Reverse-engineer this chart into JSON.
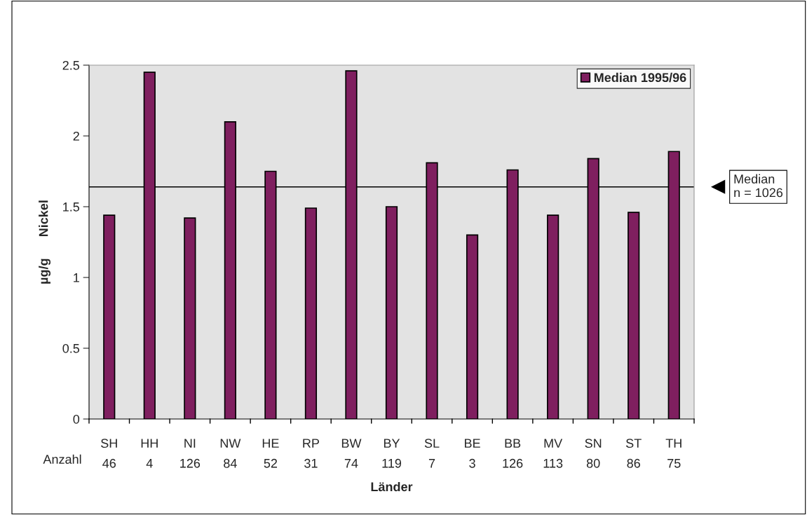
{
  "chart_data": {
    "type": "bar",
    "xlabel": "Länder",
    "ylabel": "µg/g      Nickel",
    "categories": [
      "SH\n46",
      "HH\n4",
      "NI\n126",
      "NW\n84",
      "HE\n52",
      "RP\n31",
      "BW\n74",
      "BY\n119",
      "SL\n7",
      "BE\n3",
      "BB\n126",
      "MV\n113",
      "SN\n80",
      "ST\n86",
      "TH\n75"
    ],
    "series": [
      {
        "name": "Median 1995/96",
        "color": "#7f1f5f",
        "values": [
          1.44,
          2.45,
          1.42,
          2.1,
          1.75,
          1.49,
          2.46,
          1.5,
          1.81,
          1.3,
          1.76,
          1.44,
          1.84,
          1.46,
          1.89
        ]
      }
    ],
    "ylim": [
      0,
      2.5
    ],
    "yticks": [
      0,
      0.5,
      1,
      1.5,
      2,
      2.5
    ],
    "ref_lines": [
      {
        "axis": "y",
        "value": 1.64,
        "color": "#000000"
      }
    ],
    "annotations": [
      "Anzahl",
      "Median\nn = 1026"
    ],
    "legend": "top right",
    "grid": false
  }
}
